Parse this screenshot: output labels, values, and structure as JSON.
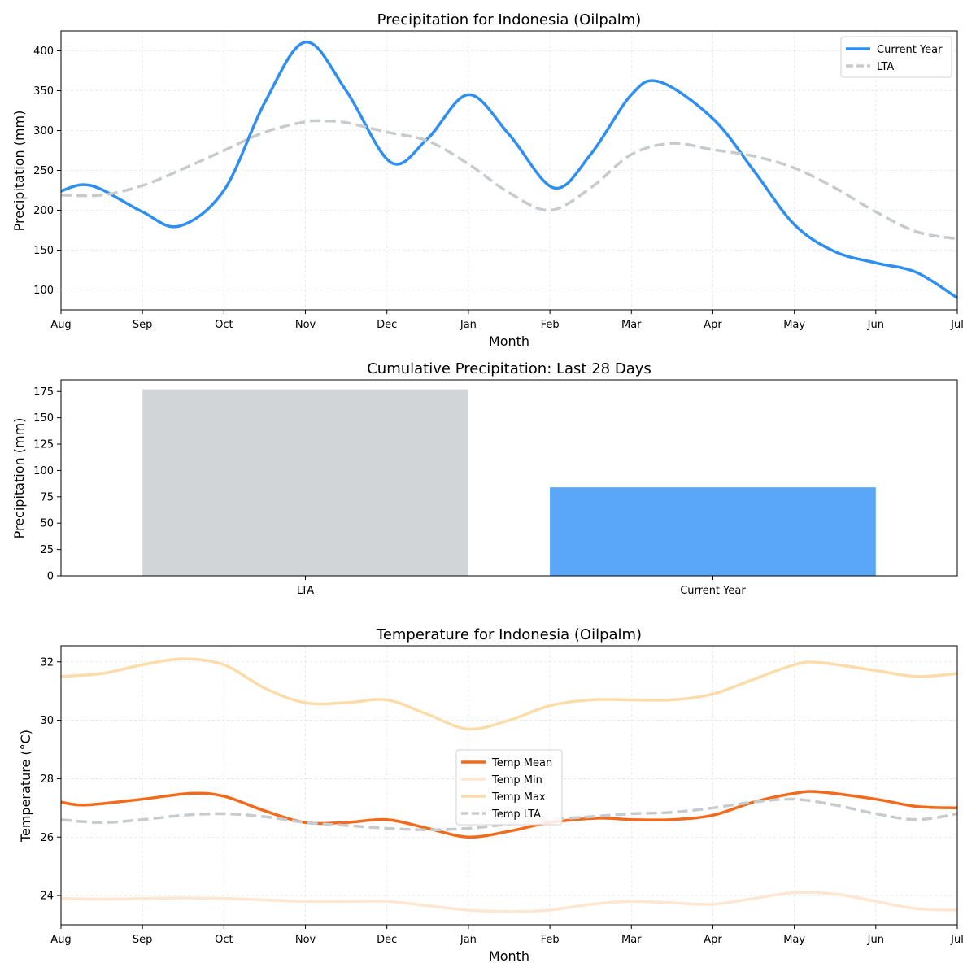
{
  "chart_data": [
    {
      "type": "line",
      "title": "Precipitation for Indonesia (Oilpalm)",
      "xlabel": "Month",
      "ylabel": "Precipitation (mm)",
      "x_ticks": [
        "Aug",
        "Sep",
        "Oct",
        "Nov",
        "Dec",
        "Jan",
        "Feb",
        "Mar",
        "Apr",
        "May",
        "Jun",
        "Jul"
      ],
      "xlim": [
        0,
        11
      ],
      "ylim": [
        75,
        425
      ],
      "y_ticks": [
        100,
        150,
        200,
        250,
        300,
        350,
        400
      ],
      "grid": true,
      "legend_position": "top-right",
      "series": [
        {
          "name": "Current Year",
          "color": "#2f8ff0",
          "style": "solid",
          "points": [
            [
              0,
              224
            ],
            [
              0.25,
              232
            ],
            [
              0.5,
              226
            ],
            [
              1,
              198
            ],
            [
              1.45,
              180
            ],
            [
              2,
              225
            ],
            [
              2.5,
              335
            ],
            [
              3,
              411
            ],
            [
              3.5,
              350
            ],
            [
              4.05,
              260
            ],
            [
              4.5,
              290
            ],
            [
              5,
              345
            ],
            [
              5.5,
              295
            ],
            [
              6.05,
              228
            ],
            [
              6.5,
              270
            ],
            [
              7,
              345
            ],
            [
              7.35,
              361
            ],
            [
              8,
              315
            ],
            [
              8.5,
              250
            ],
            [
              9,
              182
            ],
            [
              9.5,
              148
            ],
            [
              10,
              134
            ],
            [
              10.5,
              122
            ],
            [
              11,
              90
            ]
          ]
        },
        {
          "name": "LTA",
          "color": "#c8cbcd",
          "style": "dashed",
          "points": [
            [
              0,
              219
            ],
            [
              0.5,
              219
            ],
            [
              1,
              231
            ],
            [
              1.5,
              252
            ],
            [
              2,
              275
            ],
            [
              2.5,
              298
            ],
            [
              3,
              311
            ],
            [
              3.25,
              312
            ],
            [
              3.5,
              310
            ],
            [
              4,
              298
            ],
            [
              4.5,
              287
            ],
            [
              5,
              258
            ],
            [
              5.5,
              222
            ],
            [
              6,
              200
            ],
            [
              6.5,
              228
            ],
            [
              7,
              270
            ],
            [
              7.5,
              284
            ],
            [
              8,
              276
            ],
            [
              8.5,
              268
            ],
            [
              9,
              253
            ],
            [
              9.5,
              228
            ],
            [
              10,
              198
            ],
            [
              10.5,
              173
            ],
            [
              11,
              164
            ]
          ]
        }
      ]
    },
    {
      "type": "bar",
      "title": "Cumulative Precipitation: Last 28 Days",
      "xlabel": "",
      "ylabel": "Precipitation (mm)",
      "categories": [
        "LTA",
        "Current Year"
      ],
      "values": [
        177,
        84
      ],
      "colors": [
        "#d1d5d8",
        "#5aa7fa"
      ],
      "ylim": [
        0,
        186
      ],
      "y_ticks": [
        0,
        25,
        50,
        75,
        100,
        125,
        150,
        175
      ],
      "grid": false
    },
    {
      "type": "line",
      "title": "Temperature for Indonesia (Oilpalm)",
      "xlabel": "Month",
      "ylabel": "Temperature (°C)",
      "x_ticks": [
        "Aug",
        "Sep",
        "Oct",
        "Nov",
        "Dec",
        "Jan",
        "Feb",
        "Mar",
        "Apr",
        "May",
        "Jun",
        "Jul"
      ],
      "xlim": [
        0,
        11
      ],
      "ylim": [
        23.0,
        32.55
      ],
      "y_ticks": [
        24,
        26,
        28,
        30,
        32
      ],
      "grid": true,
      "legend_position": "center",
      "series": [
        {
          "name": "Temp Mean",
          "color": "#f26a1b",
          "style": "solid",
          "points": [
            [
              0,
              27.2
            ],
            [
              0.3,
              27.1
            ],
            [
              1,
              27.3
            ],
            [
              1.6,
              27.5
            ],
            [
              2,
              27.4
            ],
            [
              2.5,
              26.9
            ],
            [
              3,
              26.5
            ],
            [
              3.5,
              26.5
            ],
            [
              4,
              26.6
            ],
            [
              4.5,
              26.3
            ],
            [
              5,
              26.0
            ],
            [
              5.5,
              26.2
            ],
            [
              6,
              26.5
            ],
            [
              6.6,
              26.65
            ],
            [
              7,
              26.6
            ],
            [
              7.5,
              26.6
            ],
            [
              8,
              26.75
            ],
            [
              8.5,
              27.2
            ],
            [
              9,
              27.5
            ],
            [
              9.3,
              27.55
            ],
            [
              10,
              27.3
            ],
            [
              10.5,
              27.05
            ],
            [
              11,
              27.0
            ]
          ]
        },
        {
          "name": "Temp Min",
          "color": "#fde6d2",
          "style": "solid",
          "points": [
            [
              0,
              23.9
            ],
            [
              0.5,
              23.88
            ],
            [
              1,
              23.9
            ],
            [
              1.5,
              23.92
            ],
            [
              2,
              23.9
            ],
            [
              2.5,
              23.85
            ],
            [
              3,
              23.8
            ],
            [
              3.5,
              23.8
            ],
            [
              4,
              23.8
            ],
            [
              4.5,
              23.65
            ],
            [
              5,
              23.5
            ],
            [
              5.5,
              23.45
            ],
            [
              6,
              23.5
            ],
            [
              6.5,
              23.7
            ],
            [
              7,
              23.8
            ],
            [
              7.5,
              23.75
            ],
            [
              8,
              23.7
            ],
            [
              8.5,
              23.9
            ],
            [
              9,
              24.1
            ],
            [
              9.5,
              24.05
            ],
            [
              10,
              23.8
            ],
            [
              10.5,
              23.55
            ],
            [
              11,
              23.5
            ]
          ]
        },
        {
          "name": "Temp Max",
          "color": "#fbdcaa",
          "style": "solid",
          "points": [
            [
              0,
              31.5
            ],
            [
              0.5,
              31.6
            ],
            [
              1,
              31.9
            ],
            [
              1.5,
              32.1
            ],
            [
              2,
              31.9
            ],
            [
              2.5,
              31.1
            ],
            [
              3,
              30.6
            ],
            [
              3.5,
              30.6
            ],
            [
              4,
              30.7
            ],
            [
              4.5,
              30.2
            ],
            [
              5,
              29.7
            ],
            [
              5.5,
              30.0
            ],
            [
              6,
              30.5
            ],
            [
              6.5,
              30.7
            ],
            [
              7,
              30.7
            ],
            [
              7.5,
              30.7
            ],
            [
              8,
              30.9
            ],
            [
              8.5,
              31.4
            ],
            [
              9,
              31.9
            ],
            [
              9.3,
              31.98
            ],
            [
              10,
              31.7
            ],
            [
              10.5,
              31.5
            ],
            [
              11,
              31.6
            ]
          ]
        },
        {
          "name": "Temp LTA",
          "color": "#c8cbcd",
          "style": "dashed",
          "points": [
            [
              0,
              26.6
            ],
            [
              0.5,
              26.5
            ],
            [
              1,
              26.6
            ],
            [
              1.5,
              26.75
            ],
            [
              2,
              26.8
            ],
            [
              2.5,
              26.7
            ],
            [
              3,
              26.5
            ],
            [
              3.5,
              26.4
            ],
            [
              4,
              26.3
            ],
            [
              4.5,
              26.25
            ],
            [
              5,
              26.3
            ],
            [
              5.5,
              26.45
            ],
            [
              6,
              26.6
            ],
            [
              6.5,
              26.7
            ],
            [
              7,
              26.8
            ],
            [
              7.5,
              26.85
            ],
            [
              8,
              27.0
            ],
            [
              8.5,
              27.2
            ],
            [
              9,
              27.3
            ],
            [
              9.5,
              27.1
            ],
            [
              10,
              26.8
            ],
            [
              10.5,
              26.6
            ],
            [
              11,
              26.8
            ]
          ]
        }
      ]
    }
  ]
}
